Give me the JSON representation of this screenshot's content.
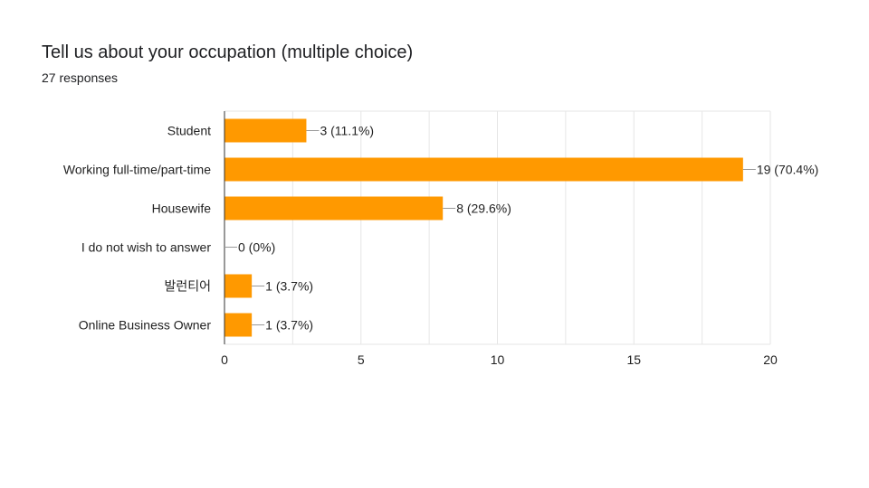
{
  "header": {
    "title": "Tell us about your occupation (multiple choice)",
    "responses": "27 responses"
  },
  "colors": {
    "bar": "#ff9900",
    "grid": "#e6e6e6",
    "axis": "#333333",
    "leader": "#999999"
  },
  "chart_data": {
    "type": "bar",
    "orientation": "horizontal",
    "title": "Tell us about your occupation (multiple choice)",
    "subtitle": "27 responses",
    "categories": [
      "Student",
      "Working full-time/part-time",
      "Housewife",
      "I do not wish to answer",
      "발런티어",
      "Online Business Owner"
    ],
    "values": [
      3,
      19,
      8,
      0,
      1,
      1
    ],
    "data_labels": [
      "3 (11.1%)",
      "19 (70.4%)",
      "8 (29.6%)",
      "0 (0%)",
      "1 (3.7%)",
      "1 (3.7%)"
    ],
    "xlim": [
      0,
      20
    ],
    "xticks": [
      0,
      5,
      10,
      15,
      20
    ],
    "xtick_labels": [
      "0",
      "5",
      "10",
      "15",
      "20"
    ],
    "grid": true,
    "legend": "none"
  }
}
